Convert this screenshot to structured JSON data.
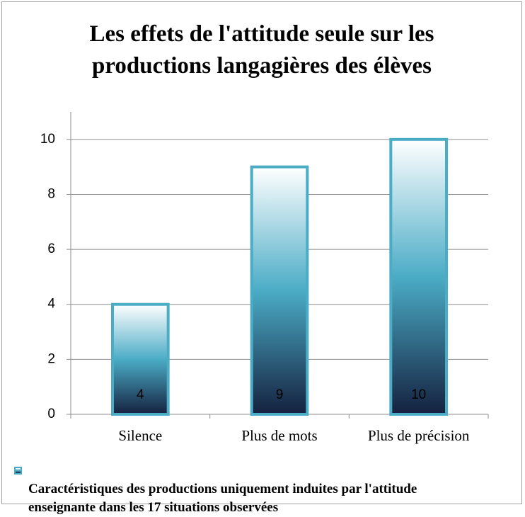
{
  "chart_data": {
    "type": "bar",
    "title": "Les effets de l'attitude seule sur les\nproductions langagières des élèves",
    "categories": [
      "Silence",
      "Plus de mots",
      "Plus de précision"
    ],
    "series": [
      {
        "name": "Caractéristiques des productions uniquement induites par l'attitude\nenseignante dans les 17 situations observées",
        "color": "#4bacc6",
        "values": [
          4,
          9,
          10
        ]
      }
    ],
    "ylim": [
      0,
      11
    ],
    "yticks": [
      0,
      2,
      4,
      6,
      8,
      10
    ],
    "grid": true,
    "legend": "bottom"
  }
}
